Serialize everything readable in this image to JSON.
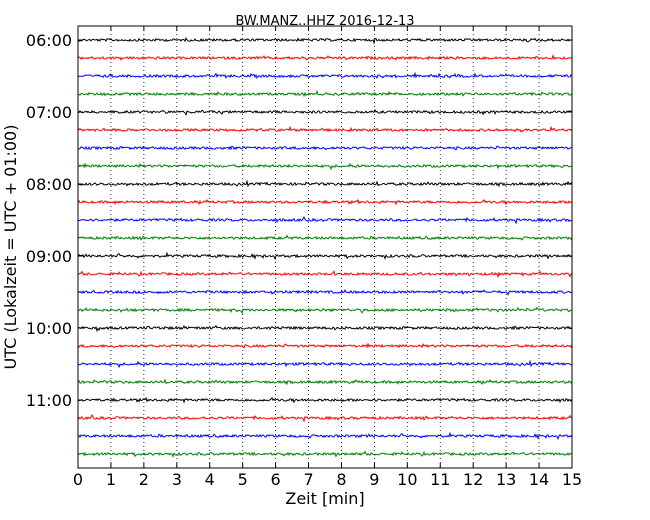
{
  "chart_data": {
    "type": "line",
    "title": "BW.MANZ..HHZ 2016-12-13",
    "xlabel": "Zeit  [min]",
    "ylabel": "UTC (Lokalzeit = UTC + 01:00)",
    "xlim": [
      0,
      15
    ],
    "x_ticks": [
      "0",
      "1",
      "2",
      "3",
      "4",
      "5",
      "6",
      "7",
      "8",
      "9",
      "10",
      "11",
      "12",
      "13",
      "14",
      "15"
    ],
    "y_tick_labels": [
      "06:00",
      "07:00",
      "08:00",
      "09:00",
      "10:00",
      "11:00"
    ],
    "grid": "vertical dotted",
    "trace_colors": [
      "#000000",
      "#ff0000",
      "#0000ff",
      "#007f00"
    ],
    "traces": [
      {
        "start": "06:00"
      },
      {
        "start": "06:15"
      },
      {
        "start": "06:30"
      },
      {
        "start": "06:45"
      },
      {
        "start": "07:00"
      },
      {
        "start": "07:15"
      },
      {
        "start": "07:30"
      },
      {
        "start": "07:45"
      },
      {
        "start": "08:00"
      },
      {
        "start": "08:15"
      },
      {
        "start": "08:30"
      },
      {
        "start": "08:45"
      },
      {
        "start": "09:00"
      },
      {
        "start": "09:15"
      },
      {
        "start": "09:30"
      },
      {
        "start": "09:45"
      },
      {
        "start": "10:00"
      },
      {
        "start": "10:15"
      },
      {
        "start": "10:30"
      },
      {
        "start": "10:45"
      },
      {
        "start": "11:00"
      },
      {
        "start": "11:15"
      },
      {
        "start": "11:30"
      },
      {
        "start": "11:45"
      }
    ]
  }
}
